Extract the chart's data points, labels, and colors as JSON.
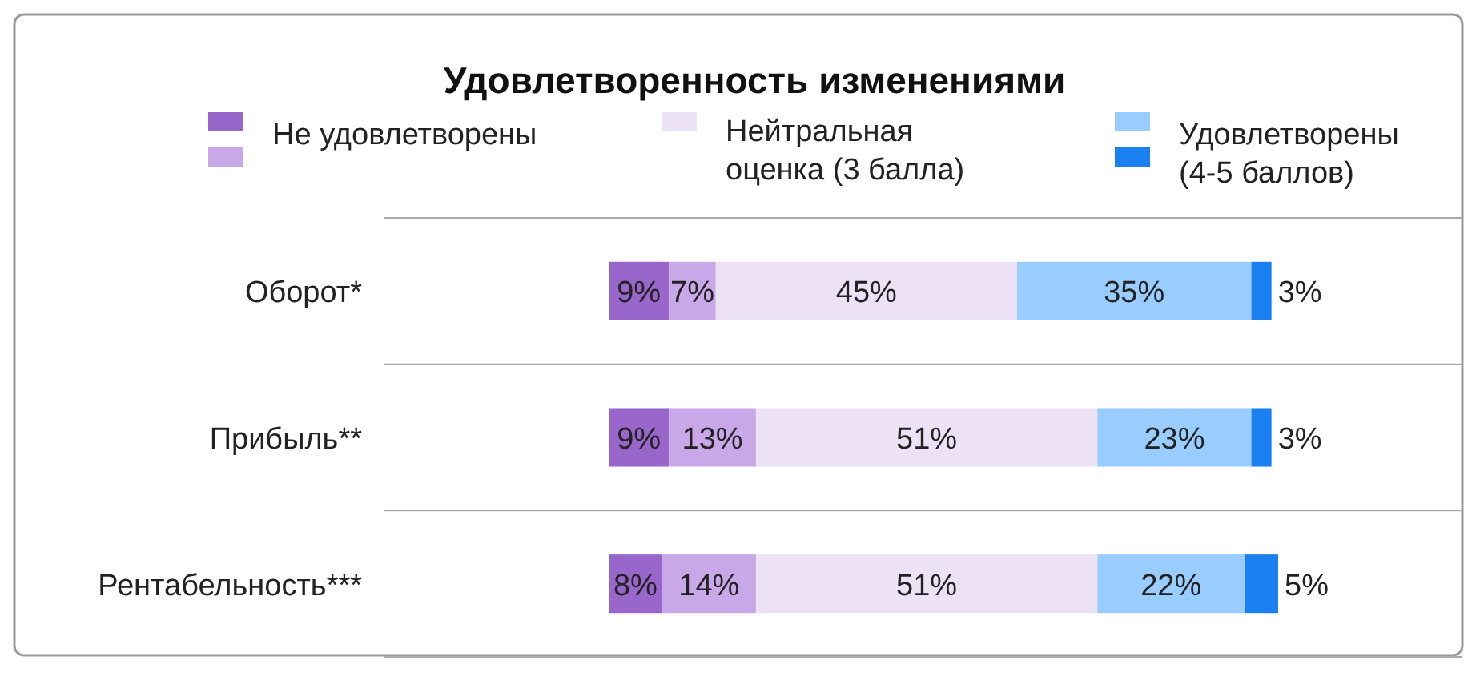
{
  "chart_data": {
    "type": "bar",
    "title": "Удовлетворенность изменениями",
    "orientation": "horizontal",
    "stacked": true,
    "categories": [
      "Оборот*",
      "Прибыль**",
      "Рентабельность***"
    ],
    "series": [
      {
        "name": "Не удовлетворены",
        "color": "#9966cc",
        "values": [
          9,
          9,
          8
        ],
        "value_labels": [
          "9%",
          "9%",
          "8%"
        ]
      },
      {
        "color": "#c8a8e8",
        "values": [
          7,
          13,
          14
        ],
        "value_labels": [
          "7%",
          "13%",
          "14%"
        ]
      },
      {
        "name": "Нейтральная оценка (3 балла)",
        "color": "#ede2f5",
        "values": [
          45,
          51,
          51
        ],
        "value_labels": [
          "45%",
          "51%",
          "51%"
        ]
      },
      {
        "name": "Удовлетворены (4-5 баллов)",
        "color": "#99ccff",
        "values": [
          35,
          23,
          22
        ],
        "value_labels": [
          "35%",
          "23%",
          "22%"
        ]
      },
      {
        "color": "#1a80f0",
        "values": [
          3,
          3,
          5
        ],
        "value_labels": [
          "3%",
          "3%",
          "5%"
        ]
      }
    ],
    "tick_labels": "y",
    "grid": "y",
    "legend": "top"
  }
}
